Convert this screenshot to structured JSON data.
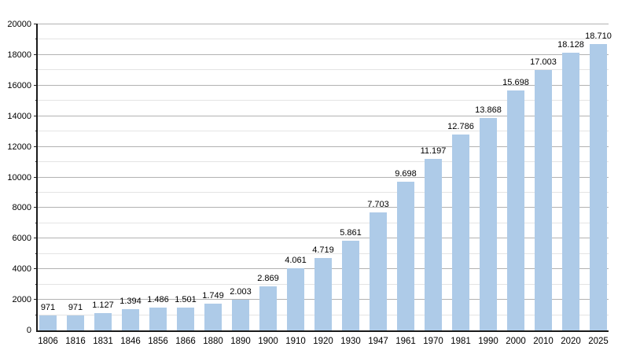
{
  "chart_data": {
    "type": "bar",
    "title": "",
    "xlabel": "",
    "ylabel": "",
    "categories": [
      "1806",
      "1816",
      "1831",
      "1846",
      "1856",
      "1866",
      "1880",
      "1890",
      "1900",
      "1910",
      "1920",
      "1930",
      "1947",
      "1961",
      "1970",
      "1981",
      "1990",
      "2000",
      "2010",
      "2020",
      "2025"
    ],
    "values": [
      971,
      971,
      1127,
      1394,
      1486,
      1501,
      1749,
      2003,
      2869,
      4061,
      4719,
      5861,
      7703,
      9698,
      11197,
      12786,
      13868,
      15698,
      17003,
      18128,
      18710
    ],
    "value_labels": [
      "971",
      "971",
      "1.127",
      "1.394",
      "1.486",
      "1.501",
      "1.749",
      "2.003",
      "2.869",
      "4.061",
      "4.719",
      "5.861",
      "7.703",
      "9.698",
      "11.197",
      "12.786",
      "13.868",
      "15.698",
      "17.003",
      "18.128",
      "18.710"
    ],
    "y_tick_labels": [
      "0",
      "2000",
      "4000",
      "6000",
      "8000",
      "10000",
      "12000",
      "14000",
      "16000",
      "18000",
      "20000"
    ],
    "ylim": [
      0,
      20000
    ],
    "y_major_step": 2000,
    "y_minor_step": 1000,
    "grid": "on",
    "legend": "none",
    "colors": {
      "bar_fill": "#aecbe8",
      "grid_major": "#b2b2b2",
      "grid_minor": "#e4e4e4",
      "axis": "#1a1a1a",
      "text": "#000000"
    }
  }
}
